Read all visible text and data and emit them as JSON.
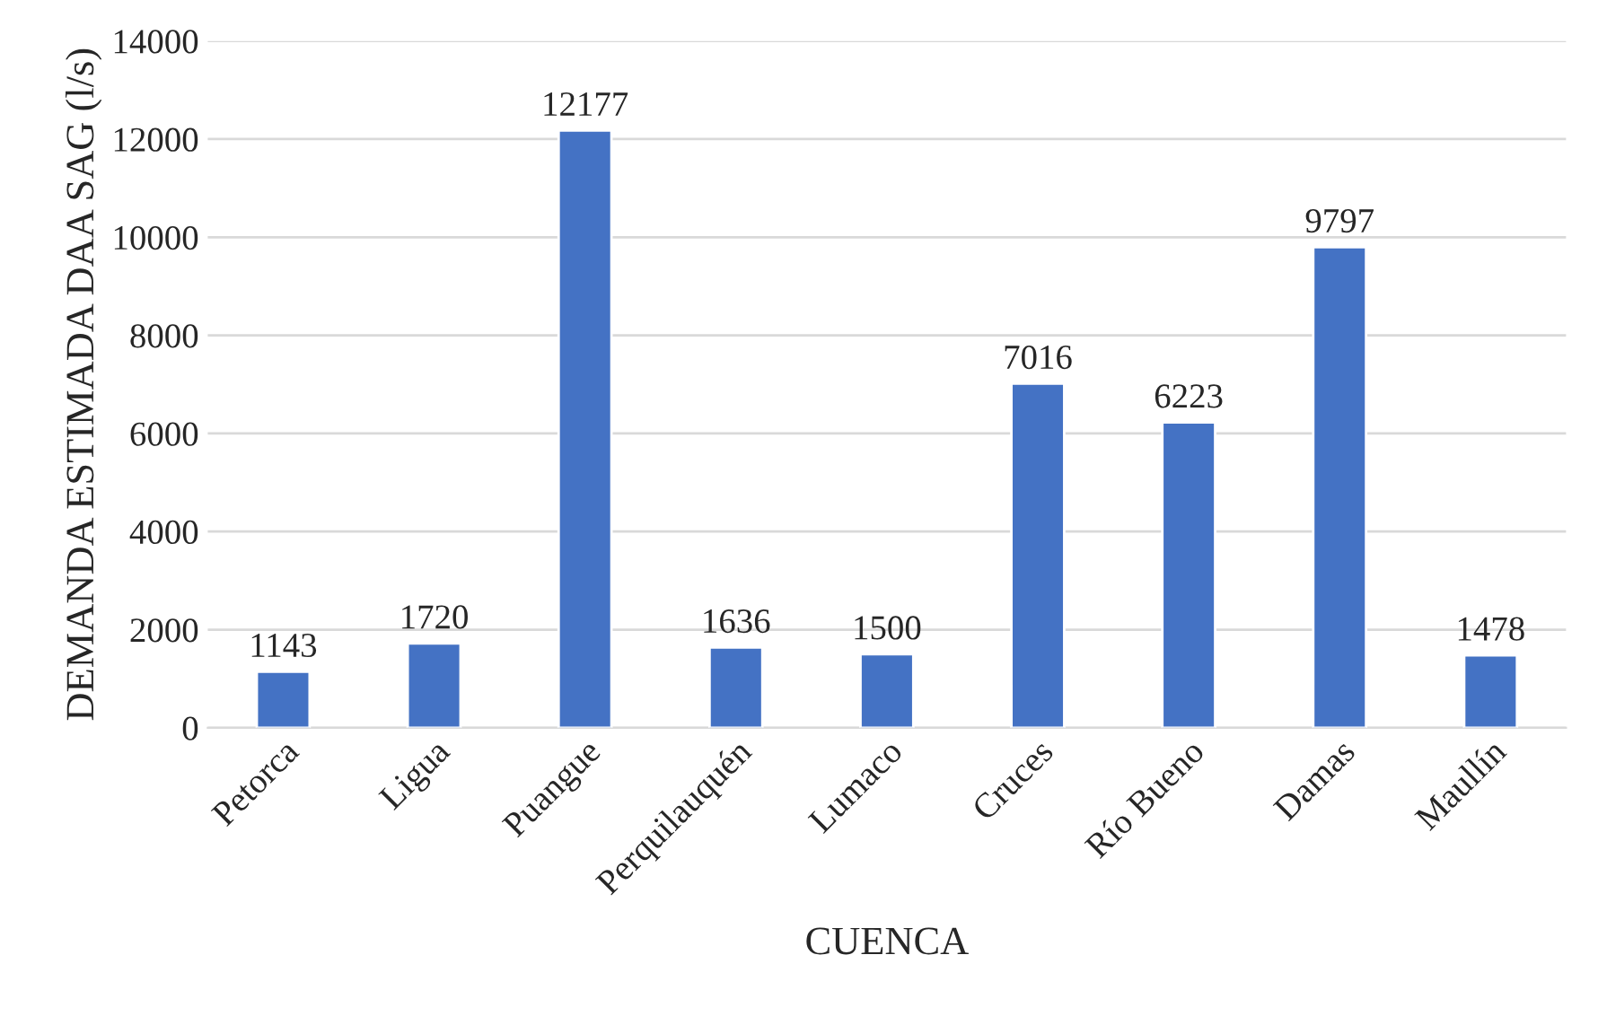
{
  "chart_data": {
    "type": "bar",
    "xlabel": "CUENCA",
    "ylabel": "DEMANDA ESTIMADA DAA SAG (l/s)",
    "categories": [
      "Petorca",
      "Ligua",
      "Puangue",
      "Perquilauquén",
      "Lumaco",
      "Cruces",
      "Río Bueno",
      "Damas",
      "Maullín"
    ],
    "values": [
      1143,
      1720,
      12177,
      1636,
      1500,
      7016,
      6223,
      9797,
      1478
    ],
    "color": "#4472c4",
    "ylim": [
      0,
      14000
    ],
    "yticks": [
      0,
      2000,
      4000,
      6000,
      8000,
      10000,
      12000,
      14000
    ],
    "grid": "y",
    "data_labels": true
  }
}
